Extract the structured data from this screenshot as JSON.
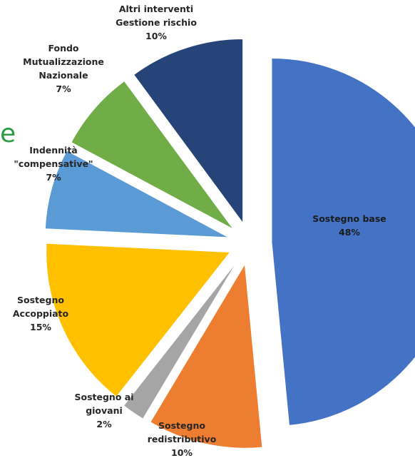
{
  "fragment_text": "e",
  "colors": {
    "fragment": "#2f9a46"
  },
  "chart_data": {
    "type": "pie",
    "exploded": true,
    "slices": [
      {
        "label_lines": [
          "Sostegno base"
        ],
        "percent_label": "48%",
        "value": 48,
        "color": "#4472c4"
      },
      {
        "label_lines": [
          "Sostegno",
          "redistributivo"
        ],
        "percent_label": "10%",
        "value": 10,
        "color": "#ed7d31"
      },
      {
        "label_lines": [
          "Sostegno ai",
          "giovani"
        ],
        "percent_label": "2%",
        "value": 2,
        "color": "#a5a5a5"
      },
      {
        "label_lines": [
          "Sostegno",
          "Accoppiato"
        ],
        "percent_label": "15%",
        "value": 15,
        "color": "#ffc000"
      },
      {
        "label_lines": [
          "Indennità",
          "\"compensative\""
        ],
        "percent_label": "7%",
        "value": 7,
        "color": "#5b9bd5"
      },
      {
        "label_lines": [
          "Fondo",
          "Mutualizzazione",
          "Nazionale"
        ],
        "percent_label": "7%",
        "value": 7,
        "color": "#70ad47"
      },
      {
        "label_lines": [
          "Altri interventi",
          "Gestione rischio"
        ],
        "percent_label": "10%",
        "value": 10,
        "color": "#264478"
      }
    ]
  }
}
